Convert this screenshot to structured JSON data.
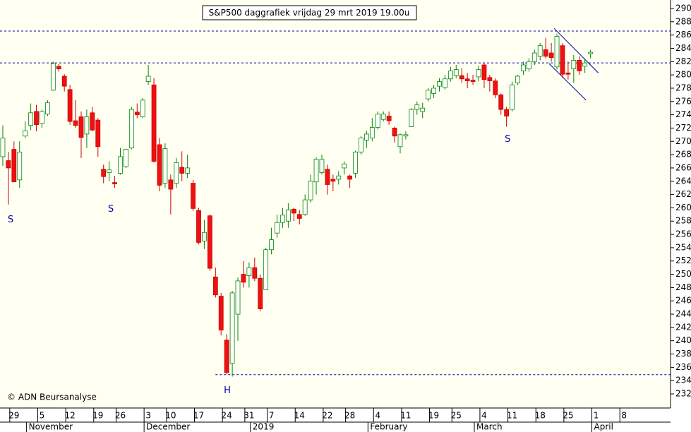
{
  "chart_data": {
    "type": "candlestick",
    "title": "S&P500 daggrafiek vrijdag 29 mrt 2019 19.00u",
    "credit": "© ADN Beursanalyse",
    "up_color": "#ffffff",
    "down_color": "#ee1111",
    "line_color": "#0000aa",
    "x": [
      0,
      1,
      2,
      3,
      4,
      5,
      6,
      7,
      8,
      9,
      10,
      11,
      12,
      13,
      14,
      15,
      16,
      17,
      18,
      19,
      20,
      21,
      22,
      23,
      24,
      25,
      26,
      27,
      28,
      29,
      30,
      31,
      32,
      33,
      34,
      35,
      36,
      37,
      38,
      39,
      40,
      41,
      42,
      43,
      44,
      45,
      46,
      47,
      48,
      49,
      50,
      51,
      52,
      53,
      54,
      55,
      56,
      57,
      58,
      59,
      60,
      61,
      62,
      63,
      64,
      65,
      66,
      67,
      68,
      69,
      70,
      71,
      72,
      73,
      74,
      75,
      76,
      77,
      78,
      79,
      80,
      81,
      82,
      83,
      84,
      85,
      86,
      87,
      88,
      89,
      90,
      91,
      92,
      93,
      94,
      95,
      96,
      97,
      98,
      99,
      100,
      101,
      102,
      103,
      104,
      105
    ],
    "open": [
      2677,
      2671,
      2688,
      2642,
      2708,
      2724,
      2745,
      2727,
      2741,
      2777,
      2813,
      2798,
      2778,
      2731,
      2737,
      2711,
      2743,
      2732,
      2658,
      2653,
      2638,
      2652,
      2662,
      2690,
      2744,
      2737,
      2790,
      2785,
      2695,
      2637,
      2642,
      2637,
      2661,
      2652,
      2637,
      2596,
      2550,
      2588,
      2496,
      2467,
      2401,
      2366,
      2440,
      2500,
      2498,
      2510,
      2494,
      2477,
      2537,
      2562,
      2578,
      2580,
      2598,
      2590,
      2590,
      2612,
      2639,
      2653,
      2658,
      2643,
      2643,
      2660,
      2648,
      2652,
      2684,
      2702,
      2705,
      2721,
      2733,
      2738,
      2720,
      2692,
      2708,
      2722,
      2748,
      2745,
      2764,
      2772,
      2783,
      2781,
      2794,
      2799,
      2799,
      2794,
      2792,
      2797,
      2815,
      2796,
      2791,
      2770,
      2748,
      2748,
      2788,
      2806,
      2809,
      2820,
      2828,
      2838,
      2833,
      2812,
      2844,
      2803,
      2809,
      2822,
      2813,
      2832
    ],
    "high": [
      2724,
      2684,
      2700,
      2700,
      2730,
      2757,
      2755,
      2748,
      2762,
      2820,
      2816,
      2801,
      2785,
      2762,
      2745,
      2748,
      2752,
      2735,
      2665,
      2670,
      2648,
      2690,
      2688,
      2752,
      2757,
      2765,
      2815,
      2795,
      2705,
      2697,
      2650,
      2675,
      2685,
      2680,
      2642,
      2600,
      2582,
      2590,
      2510,
      2472,
      2410,
      2475,
      2495,
      2520,
      2518,
      2525,
      2500,
      2540,
      2570,
      2590,
      2600,
      2607,
      2600,
      2597,
      2620,
      2650,
      2676,
      2680,
      2665,
      2650,
      2655,
      2670,
      2650,
      2686,
      2708,
      2716,
      2735,
      2745,
      2745,
      2745,
      2722,
      2712,
      2715,
      2750,
      2760,
      2758,
      2780,
      2785,
      2795,
      2800,
      2812,
      2815,
      2810,
      2803,
      2800,
      2814,
      2818,
      2800,
      2795,
      2772,
      2752,
      2790,
      2800,
      2820,
      2825,
      2838,
      2848,
      2856,
      2848,
      2862,
      2848,
      2820,
      2830,
      2828,
      2825,
      2838
    ],
    "low": [
      2663,
      2605,
      2640,
      2630,
      2705,
      2717,
      2715,
      2720,
      2738,
      2776,
      2805,
      2775,
      2725,
      2720,
      2675,
      2690,
      2715,
      2677,
      2637,
      2640,
      2630,
      2650,
      2660,
      2688,
      2735,
      2735,
      2785,
      2668,
      2625,
      2630,
      2590,
      2630,
      2640,
      2645,
      2595,
      2545,
      2538,
      2505,
      2465,
      2408,
      2350,
      2346,
      2400,
      2480,
      2480,
      2490,
      2445,
      2477,
      2530,
      2555,
      2570,
      2570,
      2580,
      2575,
      2588,
      2608,
      2620,
      2650,
      2620,
      2625,
      2635,
      2650,
      2630,
      2645,
      2680,
      2690,
      2700,
      2718,
      2730,
      2725,
      2698,
      2682,
      2703,
      2722,
      2740,
      2735,
      2760,
      2765,
      2775,
      2778,
      2790,
      2795,
      2788,
      2780,
      2785,
      2790,
      2780,
      2775,
      2765,
      2740,
      2722,
      2745,
      2785,
      2800,
      2805,
      2815,
      2822,
      2825,
      2820,
      2808,
      2795,
      2793,
      2788,
      2800,
      2803,
      2825
    ],
    "close": [
      2705,
      2660,
      2639,
      2684,
      2716,
      2743,
      2725,
      2745,
      2758,
      2817,
      2809,
      2783,
      2730,
      2724,
      2706,
      2737,
      2717,
      2692,
      2647,
      2657,
      2636,
      2677,
      2688,
      2748,
      2740,
      2762,
      2798,
      2670,
      2634,
      2689,
      2628,
      2668,
      2652,
      2660,
      2599,
      2548,
      2563,
      2509,
      2469,
      2416,
      2352,
      2472,
      2490,
      2488,
      2510,
      2494,
      2448,
      2537,
      2552,
      2578,
      2589,
      2597,
      2592,
      2584,
      2612,
      2640,
      2673,
      2673,
      2635,
      2640,
      2648,
      2666,
      2643,
      2684,
      2705,
      2711,
      2721,
      2741,
      2741,
      2731,
      2708,
      2710,
      2710,
      2748,
      2755,
      2750,
      2777,
      2780,
      2790,
      2794,
      2806,
      2808,
      2794,
      2791,
      2790,
      2808,
      2793,
      2791,
      2770,
      2748,
      2738,
      2785,
      2798,
      2815,
      2820,
      2833,
      2844,
      2828,
      2826,
      2858,
      2801,
      2801,
      2822,
      2806,
      2818,
      2834
    ],
    "xlim": [
      -0.5,
      119.3
    ],
    "ylim": [
      2298.8,
      2912.7
    ],
    "yticks": [
      2320,
      2340,
      2360,
      2380,
      2400,
      2420,
      2440,
      2460,
      2480,
      2500,
      2520,
      2540,
      2560,
      2580,
      2600,
      2620,
      2640,
      2660,
      2680,
      2700,
      2720,
      2740,
      2760,
      2780,
      2800,
      2820,
      2840,
      2860,
      2880,
      2900
    ],
    "xticks": [
      {
        "value": 2,
        "label": "29"
      },
      {
        "value": 7,
        "label": "5"
      },
      {
        "value": 12,
        "label": "12"
      },
      {
        "value": 17,
        "label": "19"
      },
      {
        "value": 21,
        "label": "26"
      },
      {
        "value": 26,
        "label": "3"
      },
      {
        "value": 30,
        "label": "10"
      },
      {
        "value": 35,
        "label": "17"
      },
      {
        "value": 40,
        "label": "24"
      },
      {
        "value": 44,
        "label": "31"
      },
      {
        "value": 48,
        "label": "7"
      },
      {
        "value": 53,
        "label": "14"
      },
      {
        "value": 58,
        "label": "22"
      },
      {
        "value": 62,
        "label": "28"
      },
      {
        "value": 67,
        "label": "4"
      },
      {
        "value": 72,
        "label": "11"
      },
      {
        "value": 77,
        "label": "19"
      },
      {
        "value": 81,
        "label": "25"
      },
      {
        "value": 86,
        "label": "4"
      },
      {
        "value": 91,
        "label": "11"
      },
      {
        "value": 96,
        "label": "18"
      },
      {
        "value": 101,
        "label": "25"
      },
      {
        "value": 106,
        "label": "1"
      },
      {
        "value": 111,
        "label": "8"
      }
    ],
    "month_ticks": [
      {
        "value": 5,
        "label": "November"
      },
      {
        "value": 26,
        "label": "December"
      },
      {
        "value": 45,
        "label": "2019"
      },
      {
        "value": 66,
        "label": "February"
      },
      {
        "value": 85,
        "label": "March"
      },
      {
        "value": 106,
        "label": "April"
      }
    ],
    "hlines": [
      {
        "value": 2866,
        "from": -0.5
      },
      {
        "value": 2818,
        "from": -0.5
      },
      {
        "value": 2349,
        "from": 38
      }
    ],
    "trendlines": [
      {
        "x": [
          98.5,
          106.4
        ],
        "y": [
          2870,
          2803
        ]
      },
      {
        "x": [
          97.6,
          104.2
        ],
        "y": [
          2817,
          2762
        ]
      }
    ],
    "annotations": [
      {
        "text": "S",
        "x": 1.4,
        "y": 2582
      },
      {
        "text": "S",
        "x": 19.3,
        "y": 2598
      },
      {
        "text": "H",
        "x": 40.1,
        "y": 2325
      },
      {
        "text": "S",
        "x": 90.2,
        "y": 2703
      }
    ]
  }
}
